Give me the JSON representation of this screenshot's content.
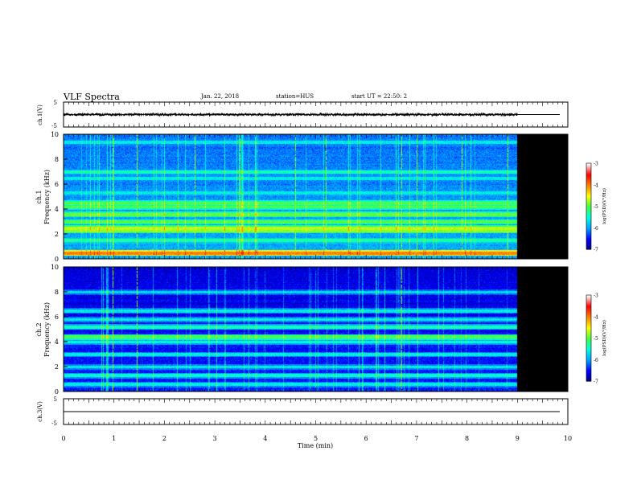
{
  "header": {
    "title": "VLF Spectra",
    "date": "Jan. 22, 2018",
    "station": "station=HUS",
    "start_ut": "start  UT =  22:50: 2"
  },
  "colors": {
    "colormap": [
      "#00007f",
      "#0000ff",
      "#00a0ff",
      "#00ffe0",
      "#40ff40",
      "#ffff00",
      "#ff8000",
      "#ff0000",
      "#ffffff"
    ],
    "nodata": "#000000"
  },
  "chart_data": [
    {
      "type": "line",
      "panel": "ch1-waveform",
      "ylabel": "ch.1(V)",
      "ylim": [
        -5,
        5
      ],
      "yticks": [
        "5",
        "-5"
      ],
      "x": [
        0,
        9,
        9.84
      ],
      "envelope_amplitude": [
        0.6,
        0.6,
        0.0
      ],
      "description_series": "waveform noise band ~0 V until 9 min, flat 0 V afterwards"
    },
    {
      "type": "heatmap",
      "panel": "ch1-spectrogram",
      "ylabel": "Frequency (kHz)",
      "channel_label": "ch.1",
      "ylim": [
        0,
        10
      ],
      "yticks": [
        "0",
        "2",
        "4",
        "6",
        "8",
        "10"
      ],
      "xlim": [
        0,
        10
      ],
      "data_end_min": 9.0,
      "colorbar": {
        "label": "log(PSD)(V²/Hz)",
        "min": -7,
        "max": -3,
        "ticks": [
          "-3",
          "-4",
          "-5",
          "-6",
          "-7"
        ]
      },
      "bands_khz": [
        {
          "f": 0.5,
          "level": -4.0
        },
        {
          "f": 1.5,
          "level": -5.3
        },
        {
          "f": 2.3,
          "level": -4.8
        },
        {
          "f": 2.5,
          "level": -4.7
        },
        {
          "f": 3.0,
          "level": -5.0
        },
        {
          "f": 3.6,
          "level": -4.9
        },
        {
          "f": 4.2,
          "level": -5.0
        },
        {
          "f": 4.5,
          "level": -5.0
        },
        {
          "f": 5.3,
          "level": -5.6
        },
        {
          "f": 6.5,
          "level": -5.6
        },
        {
          "f": 7.0,
          "level": -5.4
        },
        {
          "f": 9.4,
          "level": -5.6
        }
      ],
      "spikes_min": [
        0.97,
        1.45,
        2.6,
        3.5,
        4.6,
        5.2,
        6.7,
        7.0,
        7.9,
        8.8
      ]
    },
    {
      "type": "heatmap",
      "panel": "ch2-spectrogram",
      "ylabel": "Frequency (kHz)",
      "channel_label": "ch.2",
      "ylim": [
        0,
        10
      ],
      "yticks": [
        "0",
        "2",
        "4",
        "6",
        "8",
        "10"
      ],
      "xlim": [
        0,
        10
      ],
      "data_end_min": 9.0,
      "colorbar": {
        "label": "log(PSD)(V²/Hz)",
        "min": -7,
        "max": -3,
        "ticks": [
          "-3",
          "-4",
          "-5",
          "-6",
          "-7"
        ]
      },
      "bands_khz": [
        {
          "f": 0.6,
          "level": -5.6
        },
        {
          "f": 1.3,
          "level": -5.5
        },
        {
          "f": 2.0,
          "level": -5.6
        },
        {
          "f": 3.0,
          "level": -5.6
        },
        {
          "f": 4.0,
          "level": -5.5
        },
        {
          "f": 4.4,
          "level": -5.0
        },
        {
          "f": 5.2,
          "level": -5.4
        },
        {
          "f": 5.8,
          "level": -5.6
        },
        {
          "f": 6.5,
          "level": -5.6
        },
        {
          "f": 8.0,
          "level": -5.7
        }
      ],
      "spikes_min": [
        0.97,
        1.45,
        6.7
      ]
    },
    {
      "type": "line",
      "panel": "ch3-waveform",
      "ylabel": "ch.3(V)",
      "ylim": [
        -5,
        5
      ],
      "yticks": [
        "5",
        "-5"
      ],
      "x": [
        0,
        9.84
      ],
      "y": [
        0,
        0
      ]
    }
  ],
  "xaxis": {
    "label": "Time (min)",
    "ticks": [
      "0",
      "1",
      "2",
      "3",
      "4",
      "5",
      "6",
      "7",
      "8",
      "9",
      "10"
    ],
    "xlim": [
      0,
      10
    ]
  }
}
